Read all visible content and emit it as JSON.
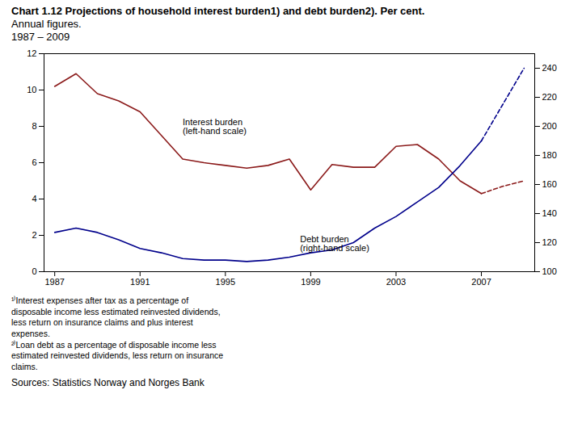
{
  "chart_data": {
    "type": "line",
    "title": "Chart 1.12 Projections of household interest burden1) and debt burden2). Per cent.",
    "subtitle": [
      "Annual figures.",
      "1987 – 2009"
    ],
    "x": [
      1987,
      1988,
      1989,
      1990,
      1991,
      1992,
      1993,
      1994,
      1995,
      1996,
      1997,
      1998,
      1999,
      2000,
      2001,
      2002,
      2003,
      2004,
      2005,
      2006,
      2007,
      2008,
      2009
    ],
    "xlim": [
      1986.5,
      2009.5
    ],
    "xticks": [
      1987,
      1991,
      1995,
      1999,
      2003,
      2007
    ],
    "ylim": [
      0,
      12
    ],
    "yticks": [
      0,
      2,
      4,
      6,
      8,
      10,
      12
    ],
    "y2lim": [
      100,
      250
    ],
    "y2ticks": [
      100,
      120,
      140,
      160,
      180,
      200,
      220,
      240
    ],
    "grid": false,
    "series": [
      {
        "color": "#8B1A1A",
        "line_style": "solid",
        "values": [
          10.2,
          10.9,
          9.8,
          9.4,
          8.8,
          7.5,
          6.2,
          6.0,
          5.85,
          5.7,
          5.85,
          6.2,
          4.5,
          5.9,
          5.75,
          5.75,
          6.9,
          7.0,
          6.2,
          5.0,
          4.3,
          null,
          null
        ]
      },
      {
        "color": "#00008B",
        "line_style": "solid",
        "axis": "y2",
        "values": [
          127,
          130,
          127,
          122,
          116,
          113,
          109,
          108,
          108,
          107,
          108,
          110,
          113,
          115,
          120,
          130,
          138,
          148,
          158,
          173,
          190,
          null,
          null
        ]
      },
      {
        "color": "#8B1A1A",
        "line_style": "dashed",
        "values": [
          null,
          null,
          null,
          null,
          null,
          null,
          null,
          null,
          null,
          null,
          null,
          null,
          null,
          null,
          null,
          null,
          null,
          null,
          null,
          null,
          4.3,
          4.7,
          5.0
        ]
      },
      {
        "color": "#00008B",
        "line_style": "dashed",
        "axis": "y2",
        "values": [
          null,
          null,
          null,
          null,
          null,
          null,
          null,
          null,
          null,
          null,
          null,
          null,
          null,
          null,
          null,
          null,
          null,
          null,
          null,
          null,
          190,
          215,
          240
        ]
      }
    ],
    "annotations": [
      {
        "text": "Interest burden\n(left-hand scale)",
        "x": 1993.0,
        "y": 8.0
      },
      {
        "text": "Debt burden\n(right-hand scale)",
        "x": 1998.5,
        "y": 1.55
      }
    ],
    "footnotes": "¹⁾Interest expenses after tax as a percentage of\ndisposable income less estimated reinvested dividends,\nless return on insurance claims and plus interest\nexpenses.\n²⁾Loan debt as a percentage of disposable income less\nestimated reinvested dividends, less return on insurance\nclaims.",
    "sources": "Sources:  Statistics Norway and Norges Bank"
  }
}
